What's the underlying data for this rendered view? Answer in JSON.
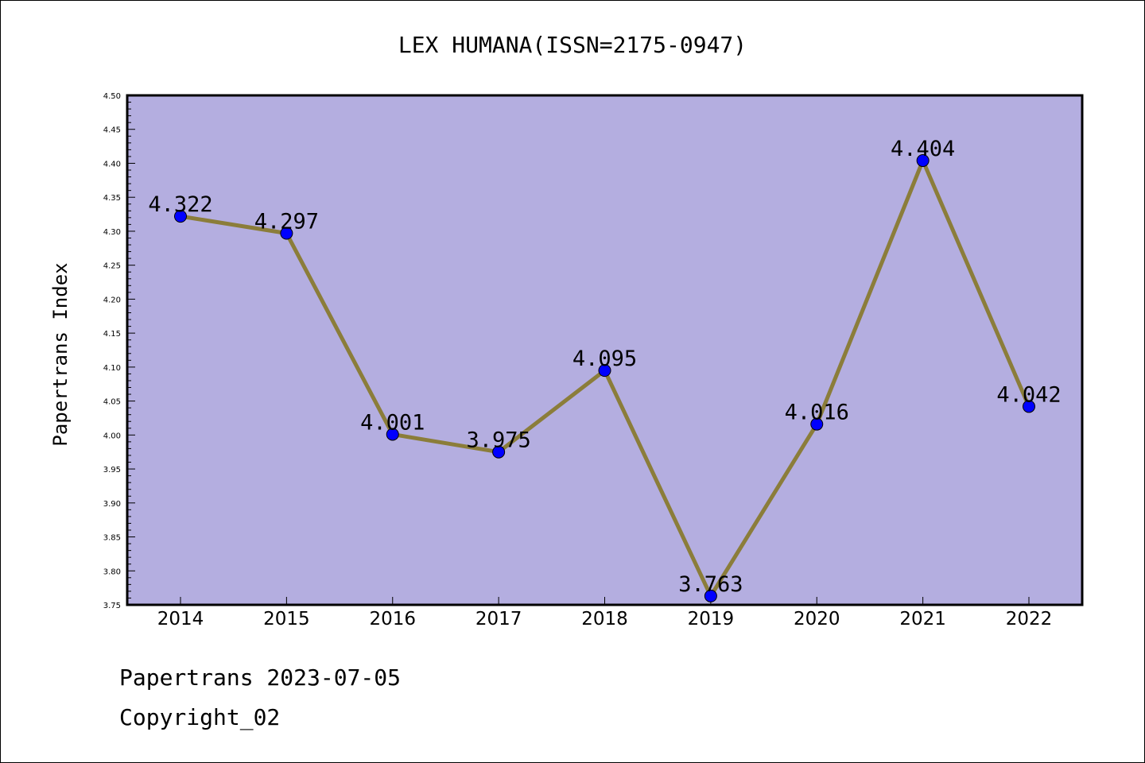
{
  "chart_data": {
    "type": "line",
    "title": "LEX HUMANA(ISSN=2175-0947)",
    "xlabel": "",
    "ylabel": "Papertrans Index",
    "categories": [
      "2014",
      "2015",
      "2016",
      "2017",
      "2018",
      "2019",
      "2020",
      "2021",
      "2022"
    ],
    "series": [
      {
        "values": [
          4.322,
          4.297,
          4.001,
          3.975,
          4.095,
          3.763,
          4.016,
          4.404,
          4.042
        ],
        "labels": [
          "4.322",
          "4.297",
          "4.001",
          "3.975",
          "4.095",
          "3.763",
          "4.016",
          "4.404",
          "4.042"
        ]
      }
    ],
    "ylim": [
      3.75,
      4.5
    ],
    "yticks": [
      "3.75",
      "3.80",
      "3.85",
      "3.90",
      "3.95",
      "4.00",
      "4.05",
      "4.10",
      "4.15",
      "4.20",
      "4.25",
      "4.30",
      "4.35",
      "4.40",
      "4.45",
      "4.50"
    ],
    "grid": false,
    "colors": {
      "plot_background": "#b4aee0",
      "line": "#8b7d3a",
      "marker": "#0000ff"
    }
  },
  "footer": {
    "line1": "Papertrans 2023-07-05",
    "line2": "Copyright_02"
  }
}
